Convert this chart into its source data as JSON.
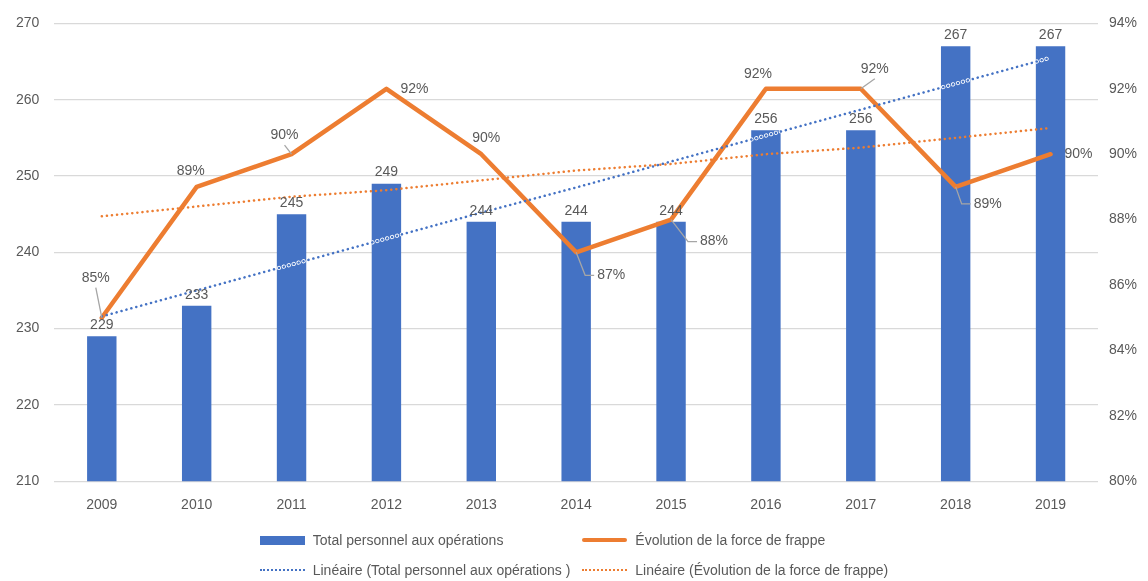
{
  "chart_data": {
    "type": "bar",
    "categories": [
      "2009",
      "2010",
      "2011",
      "2012",
      "2013",
      "2014",
      "2015",
      "2016",
      "2017",
      "2018",
      "2019"
    ],
    "series": [
      {
        "name": "Total personnel aux opérations",
        "color": "#4472c4",
        "values": [
          229,
          233,
          245,
          249,
          244,
          244,
          244,
          256,
          256,
          267,
          267
        ],
        "value_labels": [
          "229",
          "233",
          "245",
          "249",
          "244",
          "244",
          "244",
          "256",
          "256",
          "267",
          "267"
        ]
      },
      {
        "name": "Évolution de la force de frappe",
        "type": "line",
        "axis": "y2",
        "color": "#ed7d31",
        "values": [
          85,
          89,
          90,
          92,
          90,
          87,
          88,
          92,
          92,
          89,
          90
        ],
        "value_labels": [
          "85%",
          "89%",
          "90%",
          "92%",
          "90%",
          "87%",
          "88%",
          "92%",
          "92%",
          "89%",
          "90%"
        ]
      },
      {
        "name": "Linéaire (Total personnel aux opérations )",
        "type": "line",
        "line_style": "dotted",
        "color": "#4472c4",
        "values": [
          231.6,
          235.0,
          238.4,
          241.8,
          245.2,
          248.5,
          251.9,
          255.3,
          258.7,
          262.1,
          265.5
        ]
      },
      {
        "name": "Linéaire (Évolution de la force de frappe)",
        "type": "line",
        "line_style": "dotted",
        "axis": "y2",
        "color": "#ed7d31",
        "values": [
          88.1,
          88.4,
          88.7,
          88.9,
          89.2,
          89.5,
          89.7,
          90.0,
          90.2,
          90.5,
          90.8
        ]
      }
    ],
    "ylim": [
      210,
      270
    ],
    "yticks": [
      210,
      220,
      230,
      240,
      250,
      260,
      270
    ],
    "y2lim": [
      80,
      94
    ],
    "y2ticks": [
      {
        "value": 80,
        "label": "80%"
      },
      {
        "value": 82,
        "label": "82%"
      },
      {
        "value": 84,
        "label": "84%"
      },
      {
        "value": 86,
        "label": "86%"
      },
      {
        "value": 88,
        "label": "88%"
      },
      {
        "value": 90,
        "label": "90%"
      },
      {
        "value": 92,
        "label": "92%"
      },
      {
        "value": 94,
        "label": "94%"
      }
    ],
    "grid": "y",
    "legend": "bottom"
  }
}
